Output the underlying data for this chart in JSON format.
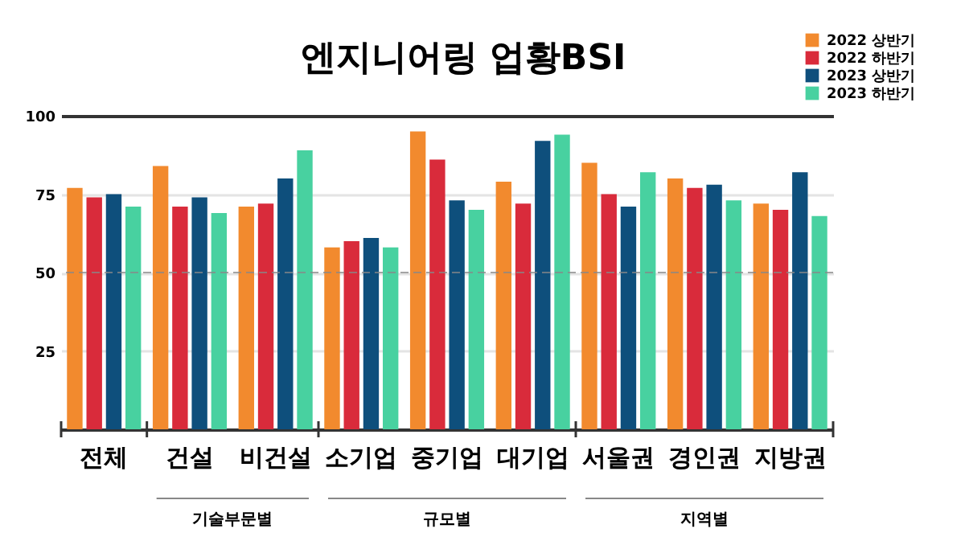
{
  "chart_data": {
    "type": "bar",
    "title": "엔지니어링 업황BSI",
    "categories": [
      "전체",
      "건설",
      "비건설",
      "소기업",
      "중기업",
      "대기업",
      "서울권",
      "경인권",
      "지방권"
    ],
    "series": [
      {
        "name": "2022 상반기",
        "color": "#f28a2e",
        "values": [
          77,
          84,
          71,
          58,
          95,
          79,
          85,
          80,
          72
        ]
      },
      {
        "name": "2022 하반기",
        "color": "#d92b3b",
        "values": [
          74,
          71,
          72,
          60,
          86,
          72,
          75,
          77,
          70
        ]
      },
      {
        "name": "2023 상반기",
        "color": "#0e4f7c",
        "values": [
          75,
          74,
          80,
          61,
          73,
          92,
          71,
          78,
          82
        ]
      },
      {
        "name": "2023 하반기",
        "color": "#48d1a0",
        "values": [
          71,
          69,
          89,
          58,
          70,
          94,
          82,
          73,
          68
        ]
      }
    ],
    "annotations": [
      "기술부문별",
      "규모별",
      "지역별"
    ],
    "ylim": [
      0,
      100
    ],
    "yticks": [
      25,
      50,
      75,
      100
    ],
    "grid": "y",
    "legend": "top right",
    "ref_lines": [
      {
        "axis": "y",
        "value": 50,
        "line_style": "dashed"
      }
    ]
  }
}
